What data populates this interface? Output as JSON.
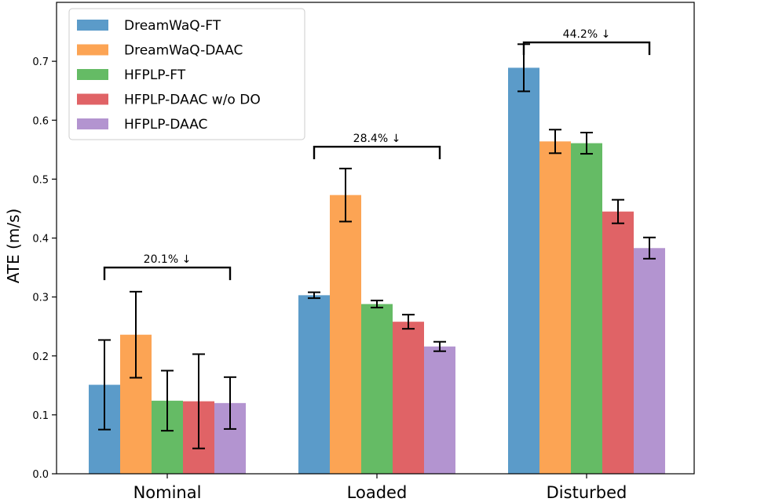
{
  "chart_data": {
    "type": "bar",
    "title": "",
    "xlabel": "",
    "ylabel": "ATE (m/s)",
    "ylim": [
      0,
      0.8
    ],
    "yticks": [
      "0.0",
      "0.1",
      "0.2",
      "0.3",
      "0.4",
      "0.5",
      "0.6",
      "0.7"
    ],
    "legend_position": "top-left",
    "categories": [
      "Nominal",
      "Loaded",
      "Disturbed"
    ],
    "series": [
      {
        "name": "DreamWaQ-FT",
        "color": "#5b9bc9",
        "values": [
          0.151,
          0.303,
          0.689
        ],
        "errors": [
          0.076,
          0.005,
          0.04
        ]
      },
      {
        "name": "DreamWaQ-DAAC",
        "color": "#fca454",
        "values": [
          0.236,
          0.473,
          0.564
        ],
        "errors": [
          0.073,
          0.045,
          0.02
        ]
      },
      {
        "name": "HFPLP-FT",
        "color": "#65bb65",
        "values": [
          0.124,
          0.288,
          0.561
        ],
        "errors": [
          0.051,
          0.006,
          0.018
        ]
      },
      {
        "name": "HFPLP-DAAC w/o DO",
        "color": "#e06366",
        "values": [
          0.123,
          0.258,
          0.445
        ],
        "errors": [
          0.08,
          0.012,
          0.02
        ]
      },
      {
        "name": "HFPLP-DAAC",
        "color": "#b394d0",
        "values": [
          0.12,
          0.216,
          0.383
        ],
        "errors": [
          0.044,
          0.008,
          0.018
        ]
      }
    ],
    "annotations": [
      {
        "category": 0,
        "text": "20.1% ↓",
        "y": 0.35
      },
      {
        "category": 1,
        "text": "28.4% ↓",
        "y": 0.555
      },
      {
        "category": 2,
        "text": "44.2% ↓",
        "y": 0.732
      }
    ]
  }
}
